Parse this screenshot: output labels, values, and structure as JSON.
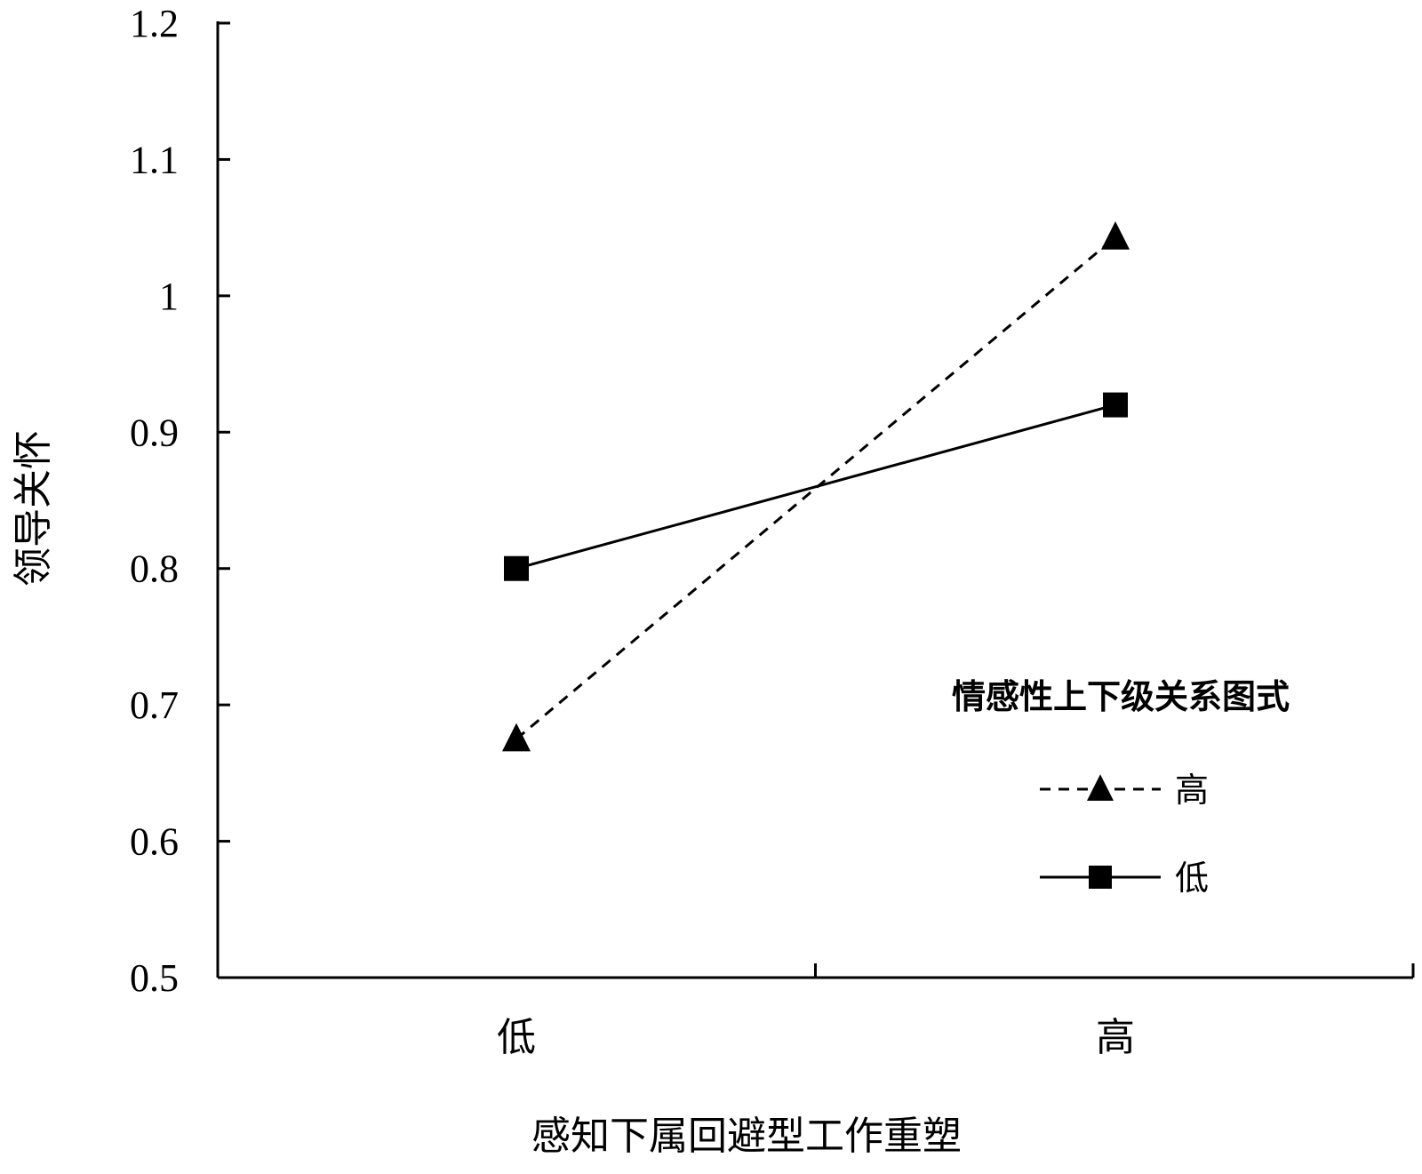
{
  "chart_data": {
    "type": "line",
    "categories": [
      "低",
      "高"
    ],
    "xlabel": "感知下属回避型工作重塑",
    "ylabel": "领导关怀",
    "ylim": [
      0.5,
      1.2
    ],
    "yticks": [
      "0.5",
      "0.6",
      "0.7",
      "0.8",
      "0.9",
      "1",
      "1.1",
      "1.2"
    ],
    "grid": false,
    "legend": {
      "title": "情感性上下级关系图式",
      "position": "right"
    },
    "series": [
      {
        "name": "高",
        "values": [
          0.675,
          1.043
        ],
        "marker": "triangle",
        "line_style": "dashed",
        "color": "#000000"
      },
      {
        "name": "低",
        "values": [
          0.8,
          0.92
        ],
        "marker": "square",
        "line_style": "solid",
        "color": "#000000"
      }
    ]
  }
}
